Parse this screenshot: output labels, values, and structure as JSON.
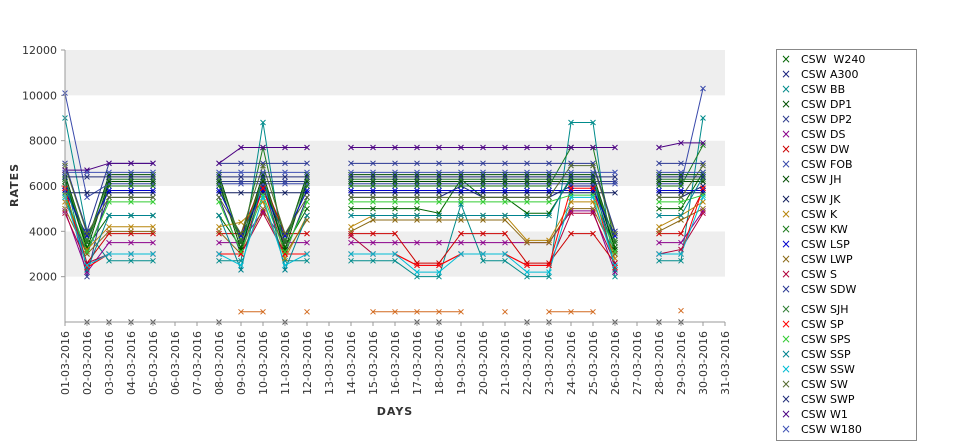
{
  "chart_data": {
    "type": "line",
    "xlabel": "DAYS",
    "ylabel": "RATES",
    "ylim": [
      0,
      12000
    ],
    "yticks": [
      "12000",
      "10000",
      "8000",
      "6000",
      "4000",
      "2000"
    ],
    "grid": "horizontal bands",
    "legend_position": "right",
    "categories": [
      "01-03-2016",
      "02-03-2016",
      "03-03-2016",
      "04-03-2016",
      "05-03-2016",
      "06-03-2016",
      "07-03-2016",
      "08-03-2016",
      "09-03-2016",
      "10-03-2016",
      "11-03-2016",
      "12-03-2016",
      "13-03-2016",
      "14-03-2016",
      "15-03-2016",
      "16-03-2016",
      "17-03-2016",
      "18-03-2016",
      "19-03-2016",
      "20-03-2016",
      "21-03-2016",
      "22-03-2016",
      "23-03-2016",
      "24-03-2016",
      "25-03-2016",
      "26-03-2016",
      "27-03-2016",
      "28-03-2016",
      "29-03-2016",
      "30-03-2016",
      "31-03-2016"
    ],
    "series": [
      {
        "name": "CSW  W240",
        "color": "#006400",
        "values": [
          6300,
          3300,
          4700,
          4700,
          4700,
          null,
          null,
          4700,
          3300,
          6300,
          3300,
          5000,
          null,
          5000,
          5000,
          5000,
          5000,
          4800,
          6300,
          5500,
          5500,
          4800,
          4800,
          6300,
          6300,
          3300,
          null,
          5000,
          5000,
          6600,
          null
        ]
      },
      {
        "name": "CSW A300",
        "color": "#1a237e",
        "values": [
          5500,
          3000,
          5500,
          5500,
          5500,
          null,
          null,
          5500,
          3000,
          6000,
          3000,
          5500,
          null,
          5500,
          5500,
          5500,
          5500,
          5500,
          6000,
          5500,
          5500,
          5500,
          5500,
          6000,
          6000,
          3000,
          null,
          5500,
          5500,
          6000,
          null
        ]
      },
      {
        "name": "CSW BB",
        "color": "#008b8b",
        "values": [
          9000,
          4000,
          2700,
          2700,
          2700,
          null,
          null,
          2700,
          2700,
          8800,
          2700,
          2700,
          null,
          2700,
          2700,
          2700,
          2000,
          2000,
          5200,
          2700,
          2700,
          2000,
          2000,
          8800,
          8800,
          2000,
          null,
          2700,
          2700,
          9000,
          null
        ]
      },
      {
        "name": "CSW DP1",
        "color": "#005000",
        "values": [
          6500,
          3500,
          6500,
          6500,
          6500,
          null,
          null,
          6500,
          3500,
          6500,
          3500,
          6500,
          null,
          6500,
          6500,
          6500,
          6500,
          6500,
          6500,
          6500,
          6500,
          6500,
          6500,
          6500,
          6500,
          3500,
          null,
          6500,
          6500,
          6500,
          null
        ]
      },
      {
        "name": "CSW DP2",
        "color": "#2e3b8e",
        "values": [
          6000,
          2000,
          6200,
          6200,
          6200,
          null,
          null,
          6200,
          6200,
          6200,
          6200,
          6200,
          null,
          6200,
          6200,
          6200,
          6200,
          6200,
          6200,
          6200,
          6200,
          6200,
          6200,
          6200,
          6200,
          6200,
          null,
          6200,
          6200,
          6200,
          null
        ]
      },
      {
        "name": "CSW DS",
        "color": "#8b008b",
        "values": [
          4900,
          2200,
          3500,
          3500,
          3500,
          null,
          null,
          3500,
          3500,
          4900,
          3500,
          3500,
          null,
          3500,
          3500,
          3500,
          3500,
          3500,
          3500,
          3500,
          3500,
          3500,
          3500,
          4900,
          4900,
          2200,
          null,
          3500,
          3500,
          4900,
          null
        ]
      },
      {
        "name": "CSW DW",
        "color": "#cc0000",
        "values": [
          5800,
          2600,
          3900,
          3900,
          3900,
          null,
          null,
          3900,
          3900,
          6200,
          3900,
          3900,
          null,
          3900,
          3900,
          3900,
          2600,
          2600,
          3900,
          3900,
          3900,
          2600,
          2600,
          3900,
          3900,
          2600,
          null,
          3900,
          3900,
          5800,
          null
        ]
      },
      {
        "name": "CSW FOB",
        "color": "#3949ab",
        "values": [
          10100,
          5500,
          6100,
          6100,
          6100,
          null,
          null,
          6100,
          6100,
          6100,
          6100,
          6100,
          null,
          6100,
          6100,
          6100,
          6100,
          6100,
          6100,
          6100,
          6100,
          6100,
          6100,
          6100,
          6100,
          6100,
          null,
          6100,
          6100,
          10300,
          null
        ]
      },
      {
        "name": "CSW JH",
        "color": "#004d00",
        "values": [
          6200,
          3200,
          6200,
          6200,
          6200,
          null,
          null,
          6200,
          3200,
          6200,
          3200,
          6200,
          null,
          6200,
          6200,
          6200,
          6200,
          6200,
          6200,
          6200,
          6200,
          6200,
          6200,
          6200,
          6200,
          3200,
          null,
          6200,
          6200,
          6200,
          null
        ]
      },
      {
        "name": "CSW JK",
        "color": "#0d1a5c",
        "values": [
          5700,
          5700,
          5700,
          5700,
          5700,
          null,
          null,
          5700,
          5700,
          5700,
          5700,
          5700,
          null,
          5700,
          5700,
          5700,
          5700,
          5700,
          5700,
          5700,
          5700,
          5700,
          5700,
          5700,
          5700,
          5700,
          null,
          5700,
          5700,
          5700,
          null
        ]
      },
      {
        "name": "CSW K",
        "color": "#b8860b",
        "values": [
          5300,
          3200,
          4200,
          4200,
          4200,
          null,
          null,
          4200,
          4400,
          5300,
          2800,
          4700,
          null,
          4200,
          4700,
          4700,
          4700,
          4700,
          4700,
          4700,
          4700,
          3600,
          3600,
          5300,
          5300,
          2800,
          null,
          4200,
          4700,
          5300,
          null
        ]
      },
      {
        "name": "CSW KW",
        "color": "#1b7a1b",
        "values": [
          6000,
          3500,
          6000,
          6000,
          6000,
          null,
          null,
          6000,
          3500,
          7700,
          3500,
          6000,
          null,
          6000,
          6000,
          6000,
          6000,
          6000,
          6000,
          6000,
          6000,
          6000,
          6000,
          7700,
          7700,
          3500,
          null,
          6000,
          6000,
          7800,
          null
        ]
      },
      {
        "name": "CSW LSP",
        "color": "#0000cd",
        "values": [
          5800,
          3800,
          5800,
          5800,
          5800,
          null,
          null,
          5800,
          3800,
          5800,
          3800,
          5800,
          null,
          5800,
          5800,
          5800,
          5800,
          5800,
          5800,
          5800,
          5800,
          5800,
          5800,
          5800,
          5800,
          3800,
          null,
          5800,
          5800,
          5800,
          null
        ]
      },
      {
        "name": "CSW LWP",
        "color": "#8b6914",
        "values": [
          5000,
          3000,
          4000,
          4000,
          4000,
          null,
          null,
          4000,
          3000,
          5000,
          3000,
          4500,
          null,
          4000,
          4500,
          4500,
          4500,
          4500,
          4500,
          4500,
          4500,
          3500,
          3500,
          5000,
          5000,
          3000,
          null,
          4000,
          4500,
          5000,
          null
        ]
      },
      {
        "name": "CSW S",
        "color": "#b0003a",
        "values": [
          4800,
          2600,
          3000,
          3000,
          3000,
          null,
          null,
          3000,
          3000,
          4800,
          3000,
          3000,
          null,
          3800,
          3000,
          3000,
          2500,
          2500,
          3000,
          3000,
          3000,
          2500,
          2500,
          4800,
          4800,
          2600,
          null,
          3000,
          3200,
          4800,
          null
        ]
      },
      {
        "name": "CSW SDW",
        "color": "#283593",
        "values": [
          7000,
          4000,
          7000,
          7000,
          7000,
          null,
          null,
          7000,
          7000,
          7000,
          7000,
          7000,
          null,
          7000,
          7000,
          7000,
          7000,
          7000,
          7000,
          7000,
          7000,
          7000,
          7000,
          7000,
          7000,
          4000,
          null,
          7000,
          7000,
          7000,
          null
        ]
      },
      {
        "name": "CSW SJH",
        "color": "#2e7d32",
        "values": [
          6300,
          3600,
          6300,
          6300,
          6300,
          null,
          null,
          6300,
          3600,
          6300,
          3600,
          6300,
          null,
          6300,
          6300,
          6300,
          6300,
          6300,
          6300,
          6300,
          6300,
          6300,
          6300,
          6300,
          6300,
          3600,
          null,
          6300,
          6300,
          6300,
          null
        ]
      },
      {
        "name": "CSW SP",
        "color": "#ff0000",
        "values": [
          5900,
          2400,
          3000,
          3000,
          3000,
          null,
          null,
          3000,
          3000,
          5900,
          3000,
          3000,
          null,
          3000,
          3000,
          3000,
          2500,
          2500,
          3000,
          3000,
          3000,
          2500,
          2500,
          5900,
          5900,
          2400,
          null,
          3000,
          3000,
          5900,
          null
        ]
      },
      {
        "name": "CSW SPS",
        "color": "#33cc33",
        "values": [
          5600,
          3100,
          5300,
          5300,
          5300,
          null,
          null,
          5300,
          3100,
          5600,
          3100,
          5300,
          null,
          5300,
          5300,
          5300,
          5300,
          5300,
          5300,
          5300,
          5300,
          5300,
          5300,
          5600,
          5600,
          3100,
          null,
          5300,
          5300,
          5600,
          null
        ]
      },
      {
        "name": "CSW SSP",
        "color": "#00838f",
        "values": [
          6400,
          2300,
          4700,
          4700,
          4700,
          null,
          null,
          4700,
          2300,
          6400,
          2300,
          4700,
          null,
          4700,
          4700,
          4700,
          4700,
          4700,
          4700,
          4700,
          4700,
          4700,
          4700,
          6400,
          6400,
          2300,
          null,
          4700,
          4700,
          6400,
          null
        ]
      },
      {
        "name": "CSW SSW",
        "color": "#00bcd4",
        "values": [
          5500,
          2500,
          3000,
          3000,
          3000,
          null,
          null,
          3000,
          2500,
          5500,
          2500,
          3000,
          null,
          3000,
          3000,
          3000,
          2200,
          2200,
          3000,
          3000,
          3000,
          2200,
          2200,
          5500,
          5500,
          2500,
          null,
          3000,
          3000,
          5500,
          null
        ]
      },
      {
        "name": "CSW SW",
        "color": "#556b2f",
        "values": [
          6900,
          3900,
          5500,
          5500,
          5500,
          null,
          null,
          5500,
          3900,
          6900,
          3900,
          5500,
          null,
          5500,
          5500,
          5500,
          5500,
          5500,
          5500,
          5500,
          5500,
          5500,
          5500,
          6900,
          6900,
          3900,
          null,
          5500,
          5500,
          6900,
          null
        ]
      },
      {
        "name": "CSW SWP",
        "color": "#1e2a78",
        "values": [
          6400,
          6400,
          6400,
          6400,
          6400,
          null,
          null,
          6400,
          6400,
          6400,
          6400,
          6400,
          null,
          6400,
          6400,
          6400,
          6400,
          6400,
          6400,
          6400,
          6400,
          6400,
          6400,
          6400,
          6400,
          6400,
          null,
          6400,
          6400,
          6400,
          null
        ]
      },
      {
        "name": "CSW W1",
        "color": "#4b0082",
        "values": [
          6700,
          6700,
          7000,
          7000,
          7000,
          null,
          null,
          7000,
          7700,
          7700,
          7700,
          7700,
          null,
          7700,
          7700,
          7700,
          7700,
          7700,
          7700,
          7700,
          7700,
          7700,
          7700,
          7700,
          7700,
          7700,
          null,
          7700,
          7900,
          7900,
          null
        ]
      },
      {
        "name": "CSW W180",
        "color": "#3f51b5",
        "values": [
          6600,
          6600,
          6600,
          6600,
          6600,
          null,
          null,
          6600,
          6600,
          6600,
          6600,
          6600,
          null,
          6600,
          6600,
          6600,
          6600,
          6600,
          6600,
          6600,
          6600,
          6600,
          6600,
          6600,
          6600,
          6600,
          null,
          6600,
          6600,
          6600,
          null
        ]
      }
    ],
    "extra_series": [
      {
        "color": "#d2691e",
        "values": [
          null,
          null,
          null,
          null,
          null,
          null,
          null,
          null,
          450,
          450,
          null,
          450,
          null,
          null,
          450,
          450,
          450,
          450,
          450,
          null,
          450,
          null,
          450,
          450,
          450,
          null,
          null,
          null,
          500,
          null,
          null
        ]
      },
      {
        "color": "#555555",
        "values": [
          null,
          0,
          0,
          0,
          0,
          null,
          null,
          0,
          null,
          null,
          0,
          null,
          null,
          null,
          null,
          null,
          0,
          0,
          null,
          null,
          null,
          0,
          0,
          null,
          null,
          0,
          null,
          0,
          0,
          null,
          null
        ]
      }
    ]
  }
}
